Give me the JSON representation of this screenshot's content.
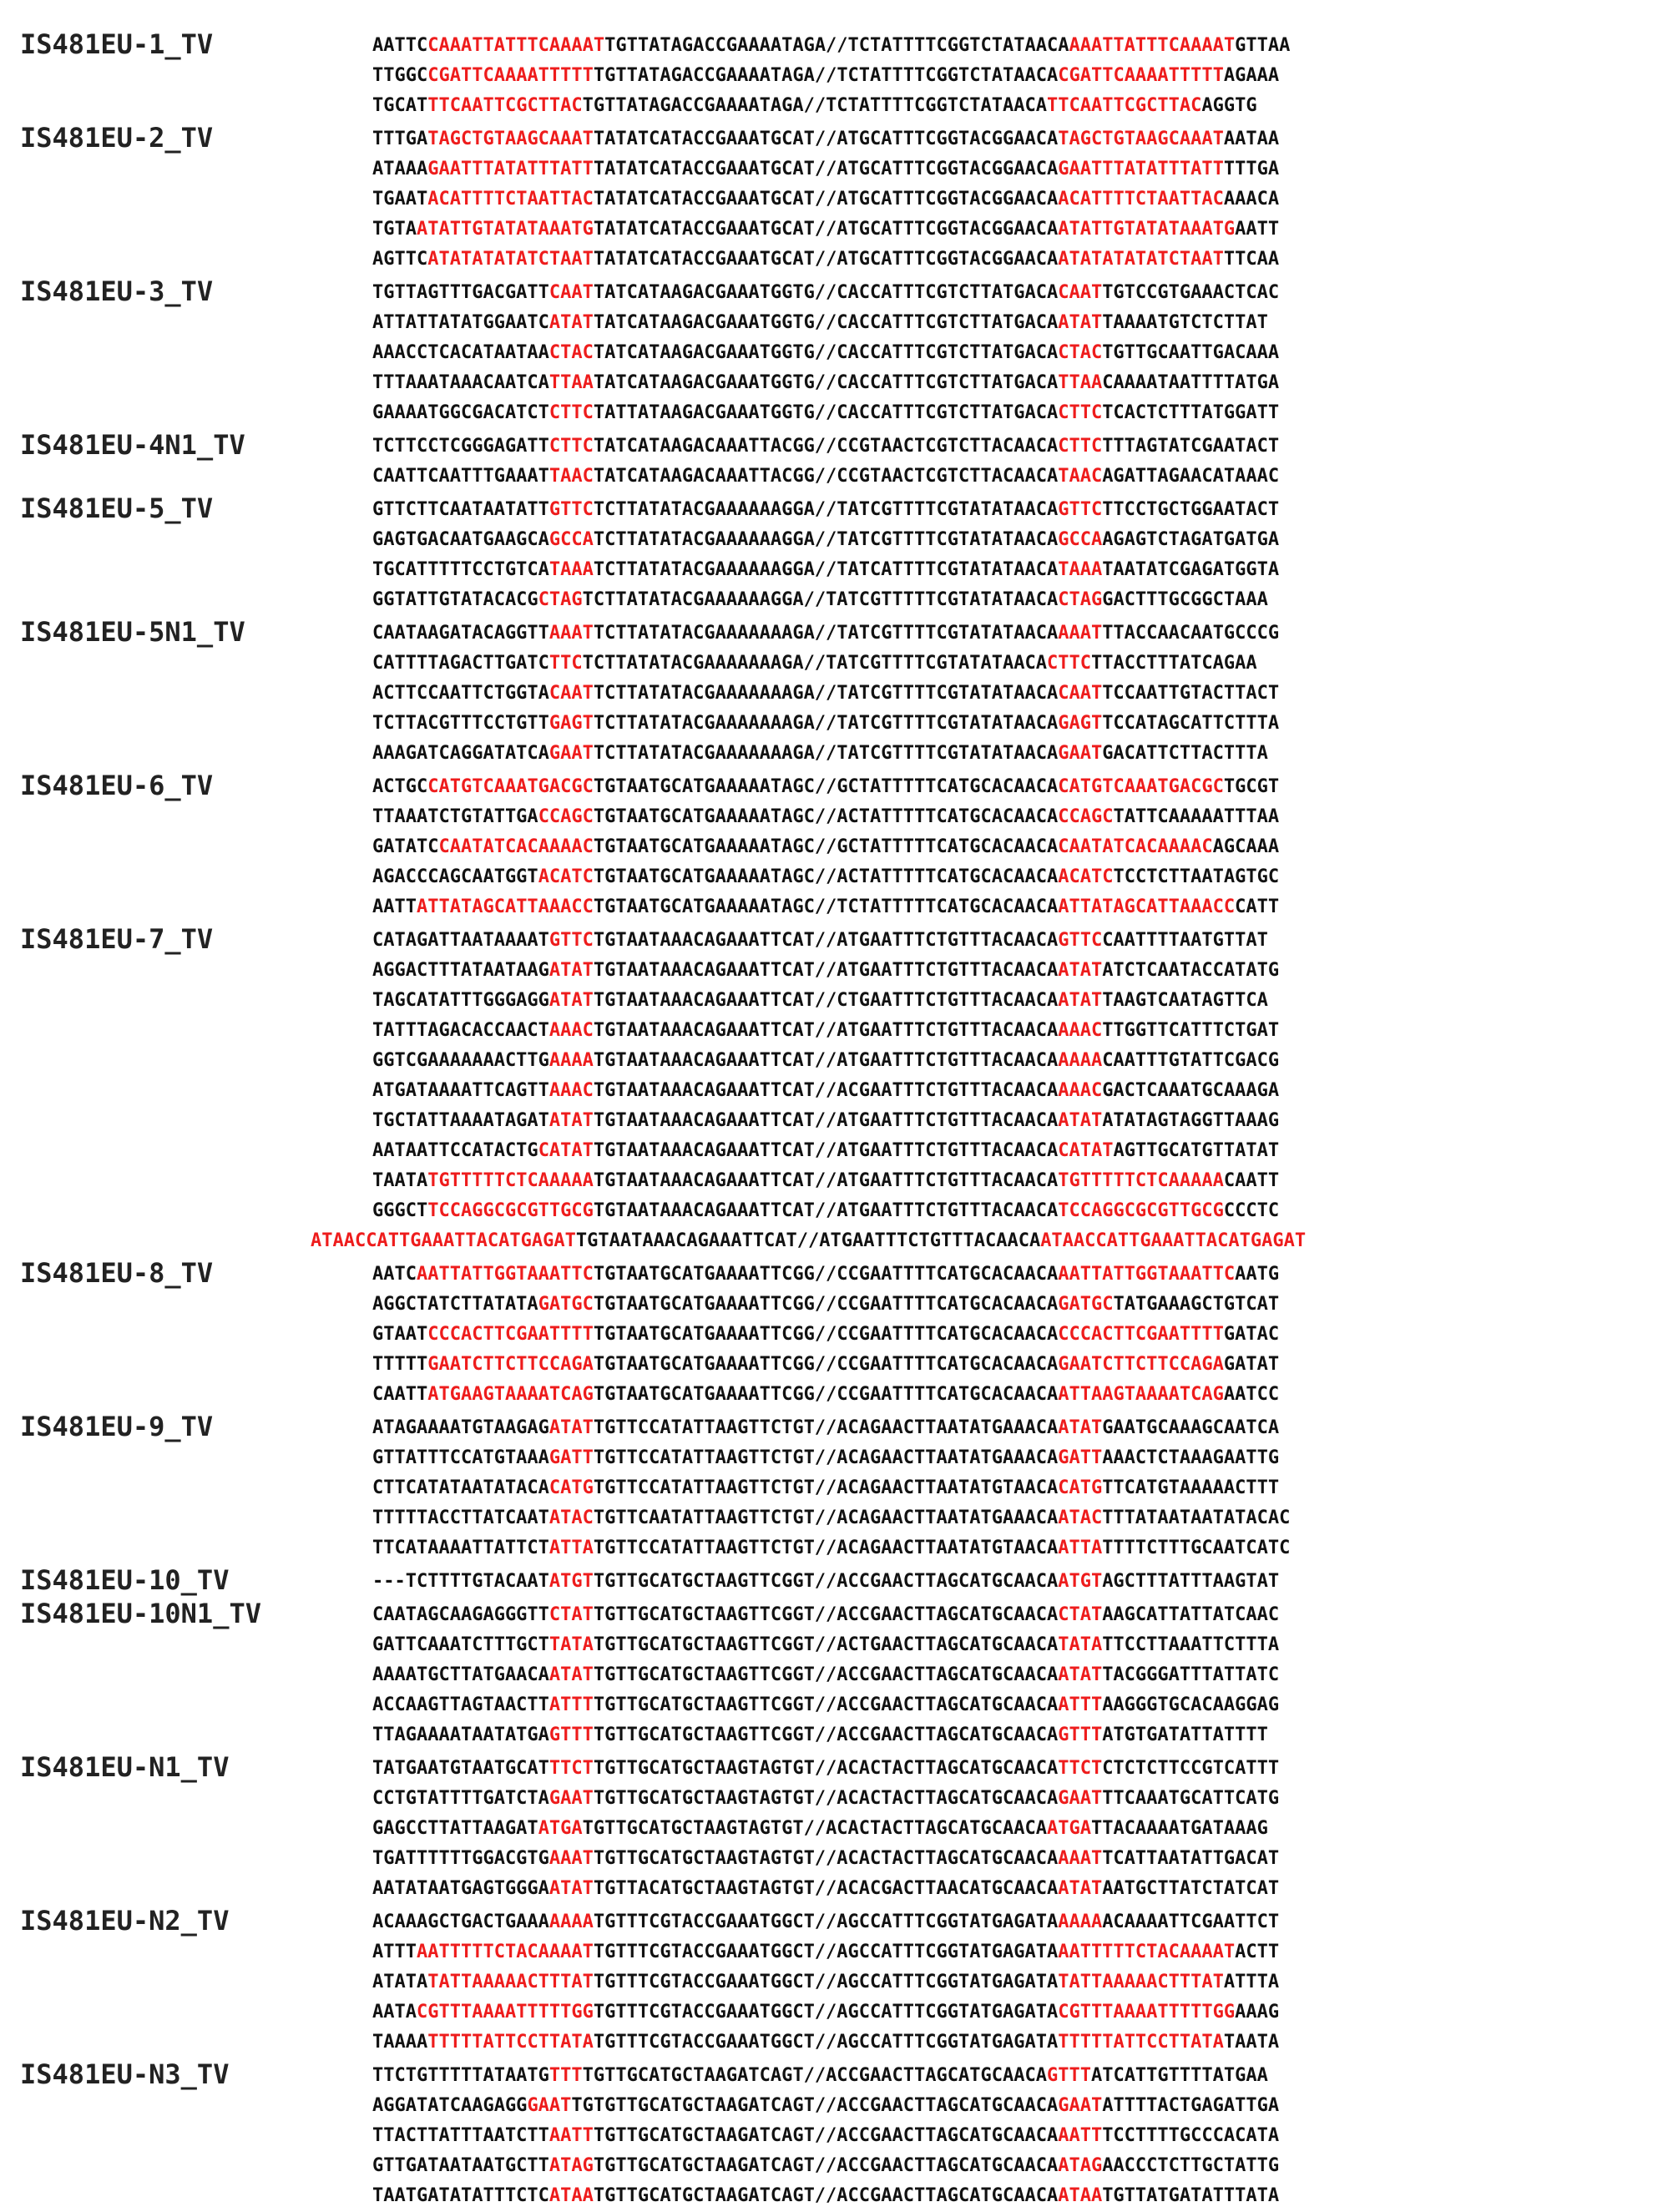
{
  "colors": {
    "text": "#111111",
    "label": "#222222",
    "highlight": "#ee1c1c",
    "background": "#ffffff"
  },
  "groups": [
    {
      "label": "IS481EU-1_TV",
      "rows": [
        [
          "AATTC",
          "CAAATTATTTCAAAAT",
          "TGTTATAGACCGAAAATAGA//TCTATTTTCGGTCTATAACA",
          "AAATTATTTCAAAAT",
          "GTTAA"
        ],
        [
          "TTGGC",
          "CGATTCAAAATTTTT",
          "TGTTATAGACCGAAAATAGA//TCTATTTTCGGTCTATAACA",
          "CGATTCAAAATTTTT",
          "AGAAA"
        ],
        [
          "TGCAT",
          "TTCAATTCGCTTAC",
          "TGTTATAGACCGAAAATAGA//TCTATTTTCGGTCTATAACA",
          "TTCAATTCGCTTAC",
          "AGGTG"
        ]
      ]
    },
    {
      "label": "IS481EU-2_TV",
      "rows": [
        [
          "TTTGA",
          "TAGCTGTAAGCAAAT",
          "TATATCATACCGAAATGCAT//ATGCATTTCGGTACGGAACA",
          "TAGCTGTAAGCAAAT",
          "AATAA"
        ],
        [
          "ATAAA",
          "GAATTTATATTTATT",
          "TATATCATACCGAAATGCAT//ATGCATTTCGGTACGGAACA",
          "GAATTTATATTTATT",
          "TTTGA"
        ],
        [
          "TGAAT",
          "ACATTTTCTAATTAC",
          "TATATCATACCGAAATGCAT//ATGCATTTCGGTACGGAACA",
          "ACATTTTCTAATTAC",
          "AAACA"
        ],
        [
          "TGTA",
          "ATATTGTATATAAATG",
          "TATATCATACCGAAATGCAT//ATGCATTTCGGTACGGAACA",
          "ATATTGTATATAAATG",
          "AATT"
        ],
        [
          "AGTTC",
          "ATATATATATCTAAT",
          "TATATCATACCGAAATGCAT//ATGCATTTCGGTACGGAACA",
          "ATATATATATCTAAT",
          "TTCAA"
        ]
      ]
    },
    {
      "label": "IS481EU-3_TV",
      "rows": [
        [
          "TGTTAGTTTGACGATT",
          "CAAT",
          "TATCATAAGACGAAATGGTG//CACCATTTCGTCTTATGACA",
          "CAAT",
          "TGTCCGTGAAACTCAC"
        ],
        [
          "ATTATTATATGGAATC",
          "ATAT",
          "TATCATAAGACGAAATGGTG//CACCATTTCGTCTTATGACA",
          "ATAT",
          "TAAAATGTCTCTTAT"
        ],
        [
          "AAACCTCACATAATAA",
          "CTAC",
          "TATCATAAGACGAAATGGTG//CACCATTTCGTCTTATGACA",
          "CTAC",
          "TGTTGCAATTGACAAA"
        ],
        [
          "TTTAAATAAACAATCA",
          "TTAA",
          "TATCATAAGACGAAATGGTG//CACCATTTCGTCTTATGACA",
          "TTAA",
          "CAAAATAATTTTATGA"
        ],
        [
          "GAAAATGGCGACATCT",
          "CTTC",
          "TATTATAAGACGAAATGGTG//CACCATTTCGTCTTATGACA",
          "CTTC",
          "TCACTCTTTATGGATT"
        ]
      ]
    },
    {
      "label": "IS481EU-4N1_TV",
      "rows": [
        [
          "TCTTCCTCGGGAGATT",
          "CTTC",
          "TATCATAAGACAAATTACGG//CCGTAACTCGTCTTACAACA",
          "CTTC",
          "TTTAGTATCGAATACT"
        ],
        [
          "CAATTCAATTTGAAAT",
          "TAAC",
          "TATCATAAGACAAATTACGG//CCGTAACTCGTCTTACAACA",
          "TAAC",
          "AGATTAGAACATAAAC"
        ]
      ]
    },
    {
      "label": "IS481EU-5_TV",
      "rows": [
        [
          "GTTCTTCAATAATATT",
          "GTTC",
          "TCTTATATACGAAAAAAGGA//TATCGTTTTCGTATATAACA",
          "GTTC",
          "TTCCTGCTGGAATACT"
        ],
        [
          "GAGTGACAATGAAGCA",
          "GCCA",
          "TCTTATATACGAAAAAAGGA//TATCGTTTTCGTATATAACA",
          "GCCA",
          "AGAGTCTAGATGATGA"
        ],
        [
          "TGCATTTTTCCTGTCA",
          "TAAA",
          "TCTTATATACGAAAAAAGGA//TATCATTTTCGTATATAACA",
          "TAAA",
          "TAATATCGAGATGGTA"
        ],
        [
          "GGTATTGTATACACG",
          "CTAG",
          "TCTTATATACGAAAAAAGGA//TATCGTTTTTCGTATATAACA",
          "CTAG",
          "GACTTTGCGGCTAAA"
        ]
      ]
    },
    {
      "label": "IS481EU-5N1_TV",
      "rows": [
        [
          "CAATAAGATACAGGTT",
          "AAAT",
          "TCTTATATACGAAAAAAAGA//TATCGTTTTCGTATATAACA",
          "AAAT",
          "TTACCAACAATGCCCG"
        ],
        [
          "CATTTTAGACTTGATC",
          "TTC",
          "TCTTATATACGAAAAAAAGA//TATCGTTTTCGTATATAACA",
          "CTTC",
          "TTACCTTTATCAGAA"
        ],
        [
          "ACTTCCAATTCTGGTA",
          "CAAT",
          "TCTTATATACGAAAAAAAGA//TATCGTTTTCGTATATAACA",
          "CAAT",
          "TCCAATTGTACTTACT"
        ],
        [
          "TCTTACGTTTCCTGTT",
          "GAGT",
          "TCTTATATACGAAAAAAAGA//TATCGTTTTCGTATATAACA",
          "GAGT",
          "TCCATAGCATTCTTTA"
        ],
        [
          "AAAGATCAGGATATCA",
          "GAAT",
          "TCTTATATACGAAAAAAAGA//TATCGTTTTCGTATATAACA",
          "GAAT",
          "GACATTCTTACTTTA"
        ]
      ]
    },
    {
      "label": "IS481EU-6_TV",
      "rows": [
        [
          "ACTGC",
          "CATGTCAAATGACGC",
          "TGTAATGCATGAAAAATAGC//GCTATTTTTCATGCACAACA",
          "CATGTCAAATGACGC",
          "TGCGT"
        ],
        [
          "TTAAATCTGTATTGA",
          "CCAGC",
          "TGTAATGCATGAAAAATAGC//ACTATTTTTCATGCACAACA",
          "CCAGC",
          "TATTCAAAAATTTAA"
        ],
        [
          "GATATC",
          "CAATATCACAAAAC",
          "TGTAATGCATGAAAAATAGC//GCTATTTTTCATGCACAACA",
          "CAATATCACAAAAC",
          "AGCAAA"
        ],
        [
          "AGACCCAGCAATGGT",
          "ACATC",
          "TGTAATGCATGAAAAATAGC//ACTATTTTTCATGCACAACA",
          "ACATC",
          "TCCTCTTAATAGTGC"
        ],
        [
          "AATT",
          "ATTATAGCATTAAACC",
          "TGTAATGCATGAAAAATAGC//TCTATTTTTCATGCACAACA",
          "ATTATAGCATTAAACC",
          "CATT"
        ]
      ]
    },
    {
      "label": "IS481EU-7_TV",
      "rows": [
        [
          "CATAGATTAATAAAAT",
          "GTTC",
          "TGTAATAAACAGAAATTCAT//ATGAATTTCTGTTTACAACA",
          "GTTC",
          "CAATTTTAATGTTAT"
        ],
        [
          "AGGACTTTATAATAAG",
          "ATAT",
          "TGTAATAAACAGAAATTCAT//ATGAATTTCTGTTTACAACA",
          "ATAT",
          "ATCTCAATACCATATG"
        ],
        [
          "TAGCATATTTGGGAGG",
          "ATAT",
          "TGTAATAAACAGAAATTCAT//CTGAATTTCTGTTTACAACA",
          "ATAT",
          "TAAGTCAATAGTTCA"
        ],
        [
          "TATTTAGACACCAACT",
          "AAAC",
          "TGTAATAAACAGAAATTCAT//ATGAATTTCTGTTTACAACA",
          "AAAC",
          "TTGGTTCATTTCTGAT"
        ],
        [
          "GGTCGAAAAAAACTTG",
          "AAAA",
          "TGTAATAAACAGAAATTCAT//ATGAATTTCTGTTTACAACA",
          "AAAA",
          "CAATTTGTATTCGACG"
        ],
        [
          "ATGATAAAATTCAGTT",
          "AAAC",
          "TGTAATAAACAGAAATTCAT//ACGAATTTCTGTTTACAACA",
          "AAAC",
          "GACTCAAATGCAAAGA"
        ],
        [
          "TGCTATTAAAATAGAT",
          "ATAT",
          "TGTAATAAACAGAAATTCAT//ATGAATTTCTGTTTACAACA",
          "ATAT",
          "ATATAGTAGGTTAAAG"
        ],
        [
          "AATAATTCCATACTG",
          "CATAT",
          "TGTAATAAACAGAAATTCAT//ATGAATTTCTGTTTACAACA",
          "CATAT",
          "AGTTGCATGTTATAT"
        ],
        [
          "TAATA",
          "TGTTTTTCTCAAAAA",
          "TGTAATAAACAGAAATTCAT//ATGAATTTCTGTTTACAACA",
          "TGTTTTTCTCAAAAA",
          "CAATT"
        ],
        [
          "GGGCT",
          "TCCAGGCGCGTTGCG",
          "TGTAATAAACAGAAATTCAT//ATGAATTTCTGTTTACAACA",
          "TCCAGGCGCGTTGCG",
          "CCCTC"
        ],
        [
          "",
          "ATAACCATTGAAATTACATGAGAT",
          "TGTAATAAACAGAAATTCAT//ATGAATTTCTGTTTACAACA",
          "ATAACCATTGAAATTACATGAGAT",
          ""
        ]
      ]
    },
    {
      "label": "IS481EU-8_TV",
      "rows": [
        [
          "AATC",
          "AATTATTGGTAAATTC",
          "TGTAATGCATGAAAATTCGG//CCGAATTTTCATGCACAACA",
          "AATTATTGGTAAATTC",
          "AATG"
        ],
        [
          "AGGCTATCTTATATA",
          "GATGC",
          "TGTAATGCATGAAAATTCGG//CCGAATTTTCATGCACAACA",
          "GATGC",
          "TATGAAAGCTGTCAT"
        ],
        [
          "GTAAT",
          "CCCACTTCGAATTTT",
          "TGTAATGCATGAAAATTCGG//CCGAATTTTCATGCACAACA",
          "CCCACTTCGAATTTT",
          "GATAC"
        ],
        [
          "TTTTT",
          "GAATCTTCTTCCAGA",
          "TGTAATGCATGAAAATTCGG//CCGAATTTTCATGCACAACA",
          "GAATCTTCTTCCAGA",
          "GATAT"
        ],
        [
          "CAATT",
          "ATGAAGTAAAATCAG",
          "TGTAATGCATGAAAATTCGG//CCGAATTTTCATGCACAACA",
          "ATTAAGTAAAATCAG",
          "AATCC"
        ]
      ]
    },
    {
      "label": "IS481EU-9_TV",
      "rows": [
        [
          "ATAGAAAATGTAAGAG",
          "ATAT",
          "TGTTCCATATTAAGTTCTGT//ACAGAACTTAATATGAAACA",
          "ATAT",
          "GAATGCAAAGCAATCA"
        ],
        [
          "GTTATTTCCATGTAAA",
          "GATT",
          "TGTTCCATATTAAGTTCTGT//ACAGAACTTAATATGAAACA",
          "GATT",
          "AAACTCTAAAGAATTG"
        ],
        [
          "CTTCATATAATATACA",
          "CATG",
          "TGTTCCATATTAAGTTCTGT//ACAGAACTTAATATGTAACA",
          "CATG",
          "TTCATGTAAAAACTTT"
        ],
        [
          "TTTTTACCTTATCAAT",
          "ATAC",
          "TGTTCAATATTAAGTTCTGT//ACAGAACTTAATATGAAACA",
          "ATAC",
          "TTTATAATAATATACAC"
        ],
        [
          "TTCATAAAATTATTCT",
          "ATTA",
          "TGTTCCATATTAAGTTCTGT//ACAGAACTTAATATGTAACA",
          "ATTA",
          "TTTTCTTTGCAATCATC"
        ]
      ]
    },
    {
      "label": "IS481EU-10_TV",
      "rows": [
        [
          "---TCTTTTGTACAAT",
          "ATGT",
          "TGTTGCATGCTAAGTTCGGT//ACCGAACTTAGCATGCAACA",
          "ATGT",
          "AGCTTTATTTAAGTAT"
        ]
      ]
    },
    {
      "label": "IS481EU-10N1_TV",
      "rows": [
        [
          "CAATAGCAAGAGGGTT",
          "CTAT",
          "TGTTGCATGCTAAGTTCGGT//ACCGAACTTAGCATGCAACA",
          "CTAT",
          "AAGCATTATTATCAAC"
        ],
        [
          "GATTCAAATCTTTGCT",
          "TATA",
          "TGTTGCATGCTAAGTTCGGT//ACTGAACTTAGCATGCAACA",
          "TATA",
          "TTCCTTAAATTCTTTA"
        ],
        [
          "AAAATGCTTATGAACA",
          "ATAT",
          "TGTTGCATGCTAAGTTCGGT//ACCGAACTTAGCATGCAACA",
          "ATAT",
          "TACGGGATTTATTATC"
        ],
        [
          "ACCAAGTTAGTAACTT",
          "ATTT",
          "TGTTGCATGCTAAGTTCGGT//ACCGAACTTAGCATGCAACA",
          "ATTT",
          "AAGGGTGCACAAGGAG"
        ],
        [
          "TTAGAAAATAATATGA",
          "GTTT",
          "TGTTGCATGCTAAGTTCGGT//ACCGAACTTAGCATGCAACA",
          "GTTT",
          "ATGTGATATTATTTT"
        ]
      ]
    },
    {
      "label": "IS481EU-N1_TV",
      "rows": [
        [
          "TATGAATGTAATGCAT",
          "TTCT",
          "TGTTGCATGCTAAGTAGTGT//ACACTACTTAGCATGCAACA",
          "TTCT",
          "CTCTCTTCCGTCATTT"
        ],
        [
          "CCTGTATTTTGATCTA",
          "GAAT",
          "TGTTGCATGCTAAGTAGTGT//ACACTACTTAGCATGCAACA",
          "GAAT",
          "TTCAAATGCATTCATG"
        ],
        [
          "GAGCCTTATTAAGAT",
          "ATGA",
          "TGTTGCATGCTAAGTAGTGT//ACACTACTTAGCATGCAACA",
          "ATGA",
          "TTACAAAATGATAAAG"
        ],
        [
          "TGATTTTTTGGACGTG",
          "AAAT",
          "TGTTGCATGCTAAGTAGTGT//ACACTACTTAGCATGCAACA",
          "AAAT",
          "TCATTAATATTGACAT"
        ],
        [
          "AATATAATGAGTGGGA",
          "ATAT",
          "TGTTACATGCTAAGTAGTGT//ACACGACTTAACATGCAACA",
          "ATAT",
          "AATGCTTATCTATCAT"
        ]
      ]
    },
    {
      "label": "IS481EU-N2_TV",
      "rows": [
        [
          "ACAAAGCTGACTGAAA",
          "AAAA",
          "TGTTTCGTACCGAAATGGCT//AGCCATTTCGGTATGAGATA",
          "AAAA",
          "ACAAAATTCGAATTCT"
        ],
        [
          "ATTT",
          "AATTTTTCTACAAAAT",
          "TGTTTCGTACCGAAATGGCT//AGCCATTTCGGTATGAGATA",
          "AATTTTTCTACAAAAT",
          "ACTT"
        ],
        [
          "ATATA",
          "TATTAAAAACTTTAT",
          "TGTTTCGTACCGAAATGGCT//AGCCATTTCGGTATGAGATA",
          "TATTAAAAACTTTAT",
          "ATTTA"
        ],
        [
          "AATA",
          "CGTTTAAAATTTTTGG",
          "TGTTTCGTACCGAAATGGCT//AGCCATTTCGGTATGAGATA",
          "CGTTTAAAATTTTTGG",
          "AAAG"
        ],
        [
          "TAAAA",
          "TTTTTATTCCTTATA",
          "TGTTTCGTACCGAAATGGCT//AGCCATTTCGGTATGAGATA",
          "TTTTTATTCCTTATA",
          "TAATA"
        ]
      ]
    },
    {
      "label": "IS481EU-N3_TV",
      "rows": [
        [
          "TTCTGTTTTTATAATG",
          "TTT",
          "TGTTGCATGCTAAGATCAGT//ACCGAACTTAGCATGCAACA",
          "GTTT",
          "ATCATTGTTTTATGAA"
        ],
        [
          "AGGATATCAAGAGG",
          "GAAT",
          "TGTGTTGCATGCTAAGATCAGT//ACCGAACTTAGCATGCAACA",
          "GAAT",
          "ATTTTACTGAGATTGA"
        ],
        [
          "TTACTTATTTAATCTT",
          "AATT",
          "TGTTGCATGCTAAGATCAGT//ACCGAACTTAGCATGCAACA",
          "AATT",
          "TCCTTTTGCCCACATA"
        ],
        [
          "GTTGATAATAATGCTT",
          "ATAG",
          "TGTTGCATGCTAAGATCAGT//ACCGAACTTAGCATGCAACA",
          "ATAG",
          "AACCCTCTTGCTATTG"
        ],
        [
          "TAATGATATATTTCTC",
          "ATAA",
          "TGTTGCATGCTAAGATCAGT//ACCGAACTTAGCATGCAACA",
          "ATAA",
          "TGTTATGATATTTATA"
        ]
      ]
    }
  ]
}
